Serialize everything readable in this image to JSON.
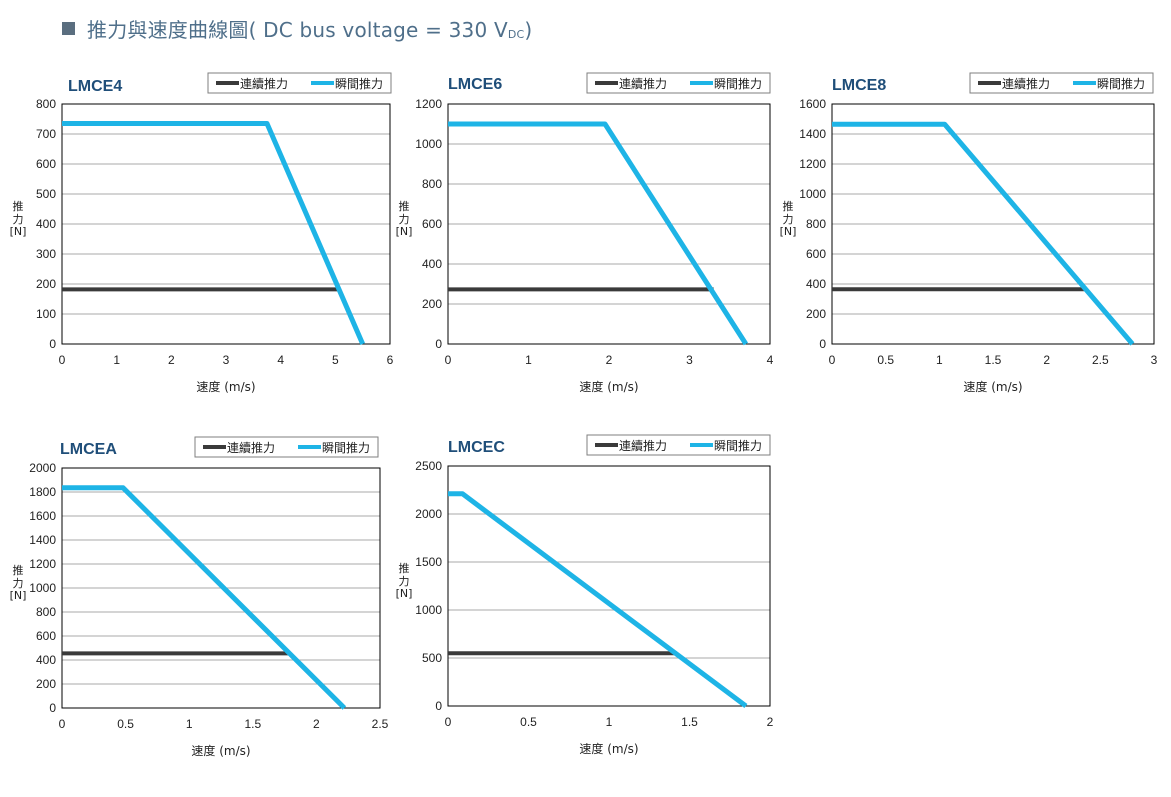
{
  "header": {
    "title_prefix": "推力與速度曲線圖( DC bus voltage = 330 V",
    "title_sub": "DC",
    "title_suffix": ")"
  },
  "colors": {
    "continuous": "#3a3a3a",
    "peak": "#1eb4e6",
    "grid": "#8c8c8c",
    "title": "#1f4e79"
  },
  "legend": {
    "continuous": "連續推力",
    "peak": "瞬間推力"
  },
  "xlabel": "速度 (m/s)",
  "ylabel": {
    "line1": "推",
    "line2": "力",
    "line3": "[N]"
  },
  "chart_data": [
    {
      "type": "line",
      "title": "LMCE4",
      "xlim": [
        0,
        6
      ],
      "xticks": [
        0,
        1,
        2,
        3,
        4,
        5,
        6
      ],
      "ylim": [
        0,
        800
      ],
      "yticks": [
        0,
        100,
        200,
        300,
        400,
        500,
        600,
        700,
        800
      ],
      "series": [
        {
          "name": "連續推力",
          "x": [
            0,
            5.05
          ],
          "y": [
            182,
            182
          ]
        },
        {
          "name": "瞬間推力",
          "x": [
            0,
            3.75,
            5.5
          ],
          "y": [
            735,
            735,
            0
          ]
        }
      ]
    },
    {
      "type": "line",
      "title": "LMCE6",
      "xlim": [
        0,
        4
      ],
      "xticks": [
        0,
        1,
        2,
        3,
        4
      ],
      "ylim": [
        0,
        1200
      ],
      "yticks": [
        0,
        200,
        400,
        600,
        800,
        1000,
        1200
      ],
      "series": [
        {
          "name": "連續推力",
          "x": [
            0,
            3.3
          ],
          "y": [
            273,
            273
          ]
        },
        {
          "name": "瞬間推力",
          "x": [
            0,
            1.95,
            3.7
          ],
          "y": [
            1100,
            1100,
            0
          ]
        }
      ]
    },
    {
      "type": "line",
      "title": "LMCE8",
      "xlim": [
        0,
        3
      ],
      "xticks": [
        0,
        0.5,
        1,
        1.5,
        2,
        2.5,
        3
      ],
      "ylim": [
        0,
        1600
      ],
      "yticks": [
        0,
        200,
        400,
        600,
        800,
        1000,
        1200,
        1400,
        1600
      ],
      "series": [
        {
          "name": "連續推力",
          "x": [
            0,
            2.35
          ],
          "y": [
            365,
            365
          ]
        },
        {
          "name": "瞬間推力",
          "x": [
            0,
            1.05,
            2.8
          ],
          "y": [
            1465,
            1465,
            0
          ]
        }
      ]
    },
    {
      "type": "line",
      "title": "LMCEA",
      "xlim": [
        0,
        2.5
      ],
      "xticks": [
        0,
        0.5,
        1,
        1.5,
        2,
        2.5
      ],
      "ylim": [
        0,
        2000
      ],
      "yticks": [
        0,
        200,
        400,
        600,
        800,
        1000,
        1200,
        1400,
        1600,
        1800,
        2000
      ],
      "series": [
        {
          "name": "連續推力",
          "x": [
            0,
            1.78
          ],
          "y": [
            455,
            455
          ]
        },
        {
          "name": "瞬間推力",
          "x": [
            0,
            0.48,
            2.22
          ],
          "y": [
            1835,
            1835,
            0
          ]
        }
      ]
    },
    {
      "type": "line",
      "title": "LMCEC",
      "xlim": [
        0,
        2
      ],
      "xticks": [
        0,
        0.5,
        1,
        1.5,
        2
      ],
      "ylim": [
        0,
        2500
      ],
      "yticks": [
        0,
        500,
        1000,
        1500,
        2000,
        2500
      ],
      "series": [
        {
          "name": "連續推力",
          "x": [
            0,
            1.42
          ],
          "y": [
            550,
            550
          ]
        },
        {
          "name": "瞬間推力",
          "x": [
            0,
            0.09,
            1.85
          ],
          "y": [
            2210,
            2210,
            0
          ]
        }
      ]
    }
  ]
}
